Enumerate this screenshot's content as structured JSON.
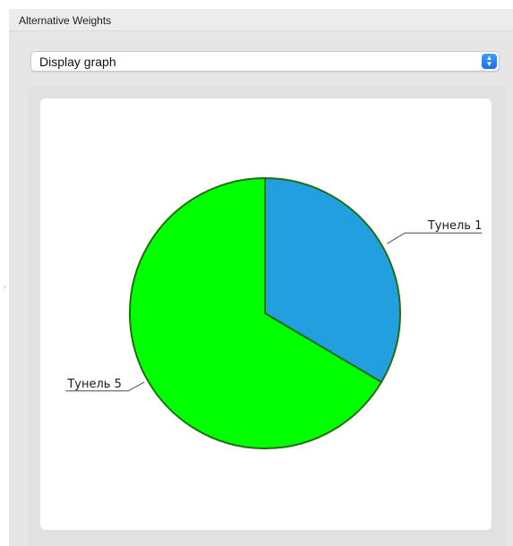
{
  "panel": {
    "title": "Alternative Weights"
  },
  "display_select": {
    "value": "Display graph"
  },
  "chart_data": {
    "type": "pie",
    "slices": [
      {
        "label": "Тунель 1",
        "value": 33.5,
        "color": "#229fde"
      },
      {
        "label": "Тунель 5",
        "value": 66.5,
        "color": "#00ff00"
      }
    ],
    "slice_stroke": "#1f6e14"
  }
}
